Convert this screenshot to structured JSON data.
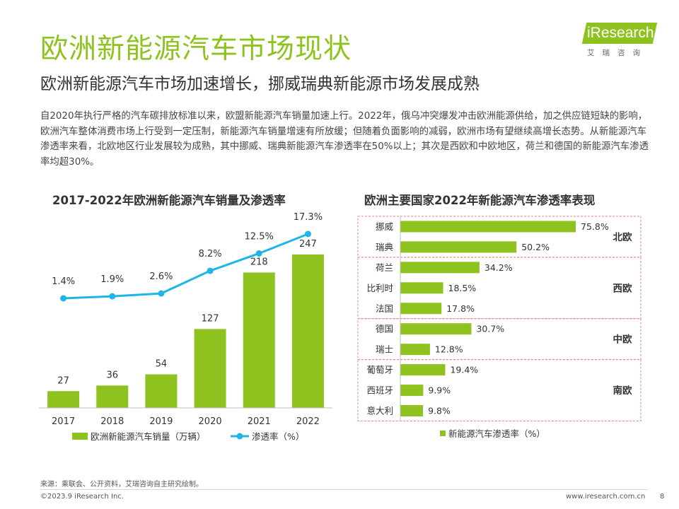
{
  "header": {
    "title": "欧洲新能源汽车市场现状",
    "subtitle": "欧洲新能源汽车市场加速增长，挪威瑞典新能源市场发展成熟",
    "intro": "自2020年执行严格的汽车碳排放标准以来，欧盟新能源汽车销量加速上行。2022年，俄乌冲突爆发冲击欧洲能源供给，加之供应链短缺的影响，欧洲汽车整体消费市场上行受到一定压制，新能源汽车销量增速有所放缓；但随着负面影响的减弱，欧洲市场有望继续高增长态势。从新能源汽车渗透率来看，北欧地区行业发展较为成熟，其中挪威、瑞典新能源汽车渗透率在50%以上；其次是西欧和中欧地区，荷兰和德国的新能源汽车渗透率均超30%。"
  },
  "logo": {
    "text": "iResearch",
    "cn": "艾瑞咨询"
  },
  "colors": {
    "accent": "#8dc21f",
    "line": "#1fb5e8",
    "region_border": "#e8868a"
  },
  "chart_data": [
    {
      "type": "bar",
      "title": "2017-2022年欧洲新能源汽车销量及渗透率",
      "categories": [
        "2017",
        "2018",
        "2019",
        "2020",
        "2021",
        "2022"
      ],
      "series": [
        {
          "name": "欧洲新能源汽车销量（万辆）",
          "type": "bar",
          "values": [
            27,
            36,
            54,
            127,
            218,
            247
          ]
        },
        {
          "name": "渗透率（%）",
          "type": "line",
          "values": [
            1.4,
            1.9,
            2.6,
            8.2,
            12.5,
            17.3
          ],
          "labels": [
            "1.4%",
            "1.9%",
            "2.6%",
            "8.2%",
            "12.5%",
            "17.3%"
          ]
        }
      ],
      "legend": "bottom",
      "grid": false
    },
    {
      "type": "bar",
      "orientation": "horizontal",
      "title": "欧洲主要国家2022年新能源汽车渗透率表现",
      "series_name": "新能源汽车渗透率（%）",
      "legend": "bottom",
      "grid": false,
      "groups": [
        {
          "region": "北欧",
          "items": [
            {
              "country": "挪威",
              "value": 75.8,
              "label": "75.8%"
            },
            {
              "country": "瑞典",
              "value": 50.2,
              "label": "50.2%"
            }
          ]
        },
        {
          "region": "西欧",
          "items": [
            {
              "country": "荷兰",
              "value": 34.2,
              "label": "34.2%"
            },
            {
              "country": "比利时",
              "value": 18.5,
              "label": "18.5%"
            },
            {
              "country": "法国",
              "value": 17.8,
              "label": "17.8%"
            }
          ]
        },
        {
          "region": "中欧",
          "items": [
            {
              "country": "德国",
              "value": 30.7,
              "label": "30.7%"
            },
            {
              "country": "瑞士",
              "value": 12.8,
              "label": "12.8%"
            }
          ]
        },
        {
          "region": "南欧",
          "items": [
            {
              "country": "葡萄牙",
              "value": 19.4,
              "label": "19.4%"
            },
            {
              "country": "西班牙",
              "value": 9.9,
              "label": "9.9%"
            },
            {
              "country": "意大利",
              "value": 9.8,
              "label": "9.8%"
            }
          ]
        }
      ]
    }
  ],
  "footer": {
    "source": "来源：乘联会、公开资料，艾瑞咨询自主研究绘制。",
    "copyright": "©2023.9 iResearch Inc.",
    "website": "www.iresearch.com.cn",
    "page": "8"
  }
}
